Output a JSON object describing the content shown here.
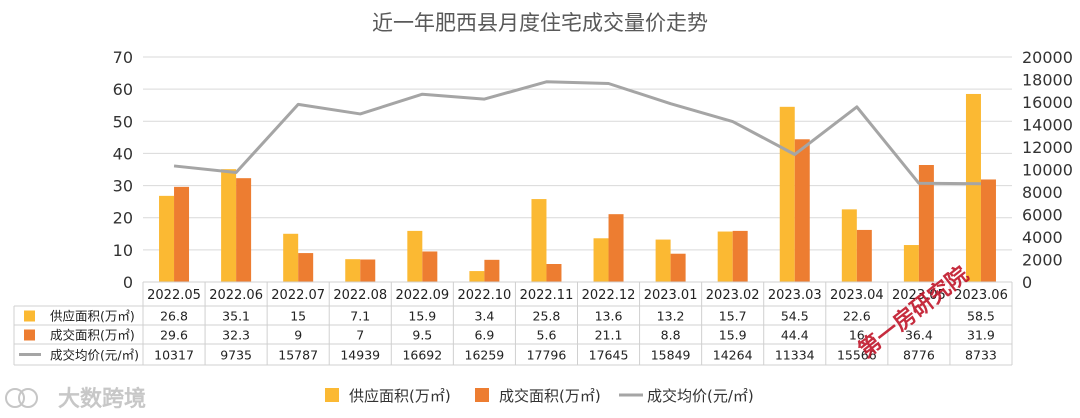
{
  "chart_data": {
    "type": "bar",
    "title": "近一年肥西县月度住宅成交量价走势",
    "categories": [
      "2022.05",
      "2022.06",
      "2022.07",
      "2022.08",
      "2022.09",
      "2022.10",
      "2022.11",
      "2022.12",
      "2023.01",
      "2023.02",
      "2023.03",
      "2023.04",
      "2023.05",
      "2023.06"
    ],
    "series": [
      {
        "name": "供应面积(万㎡)",
        "kind": "bar",
        "axis": "left",
        "color": "#FBB933",
        "values": [
          26.8,
          35.1,
          15,
          7.1,
          15.9,
          3.4,
          25.8,
          13.6,
          13.2,
          15.7,
          54.5,
          22.6,
          11.5,
          58.5
        ],
        "labels": [
          "26.8",
          "35.1",
          "15",
          "7.1",
          "15.9",
          "3.4",
          "25.8",
          "13.6",
          "13.2",
          "15.7",
          "54.5",
          "22.6",
          "",
          "58.5"
        ]
      },
      {
        "name": "成交面积(万㎡)",
        "kind": "bar",
        "axis": "left",
        "color": "#ED7D31",
        "values": [
          29.6,
          32.3,
          9,
          7,
          9.5,
          6.9,
          5.6,
          21.1,
          8.8,
          15.9,
          44.4,
          16.2,
          36.4,
          31.9
        ],
        "labels": [
          "29.6",
          "32.3",
          "9",
          "7",
          "9.5",
          "6.9",
          "5.6",
          "21.1",
          "8.8",
          "15.9",
          "44.4",
          "16",
          "36.4",
          "31.9"
        ]
      },
      {
        "name": "成交均价(元/㎡)",
        "kind": "line",
        "axis": "right",
        "color": "#A5A5A5",
        "values": [
          10317,
          9735,
          15787,
          14939,
          16692,
          16259,
          17796,
          17645,
          15849,
          14264,
          11334,
          15566,
          8776,
          8733
        ],
        "labels": [
          "10317",
          "9735",
          "15787",
          "14939",
          "16692",
          "16259",
          "17796",
          "17645",
          "15849",
          "14264",
          "11334",
          "15566",
          "8776",
          "8733"
        ]
      }
    ],
    "y_left": {
      "min": 0,
      "max": 70,
      "ticks": [
        "0",
        "10",
        "20",
        "30",
        "40",
        "50",
        "60",
        "70"
      ]
    },
    "y_right": {
      "min": 0,
      "max": 20000,
      "ticks": [
        "0",
        "2000",
        "4000",
        "6000",
        "8000",
        "10000",
        "12000",
        "14000",
        "16000",
        "18000",
        "20000"
      ]
    },
    "grid": true,
    "legend": "bottom",
    "data_table": true
  },
  "watermark_logo": "大数跨境",
  "stamp_text": "第一房研究院"
}
